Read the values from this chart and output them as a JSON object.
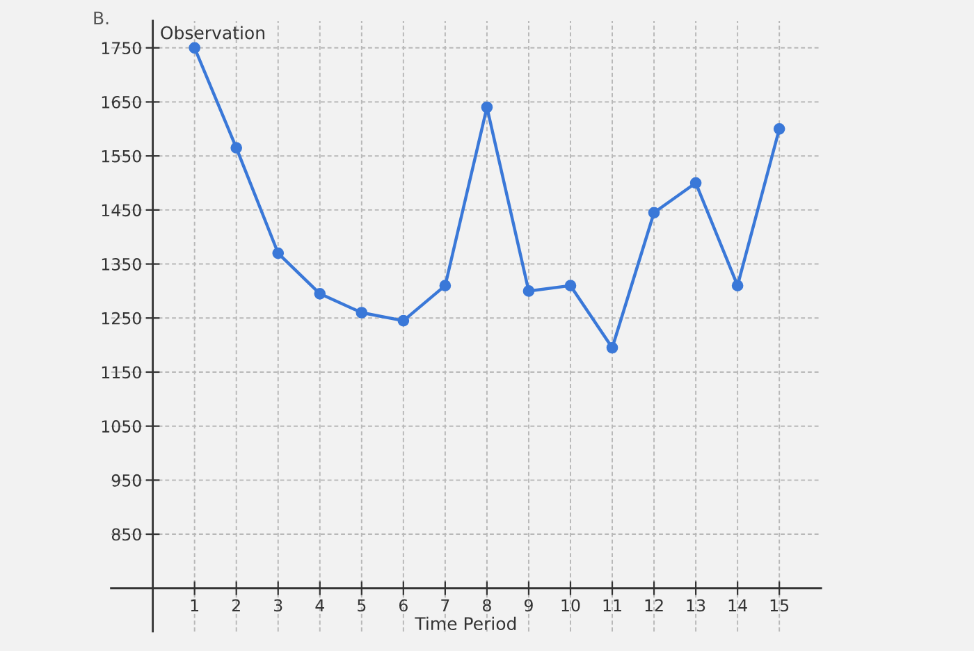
{
  "chart_data": {
    "type": "line",
    "xlabel": "Time Period",
    "ylabel": "Observation",
    "annotations": [
      "B."
    ],
    "x": [
      1,
      2,
      3,
      4,
      5,
      6,
      7,
      8,
      9,
      10,
      11,
      12,
      13,
      14,
      15
    ],
    "series": [
      {
        "color": "#3a78d8",
        "values": [
          1750,
          1565,
          1370,
          1295,
          1260,
          1245,
          1310,
          1640,
          1300,
          1310,
          1195,
          1445,
          1500,
          1310,
          1600
        ]
      }
    ],
    "xlim": [
      -1,
      16
    ],
    "ylim": [
      670,
      1800
    ],
    "xticks": [
      1,
      2,
      3,
      4,
      5,
      6,
      7,
      8,
      9,
      10,
      11,
      12,
      13,
      14,
      15
    ],
    "yticks": [
      850,
      950,
      1050,
      1150,
      1250,
      1350,
      1450,
      1550,
      1650,
      1750
    ],
    "grid": true,
    "marker": "circle",
    "line_style": "solid"
  }
}
